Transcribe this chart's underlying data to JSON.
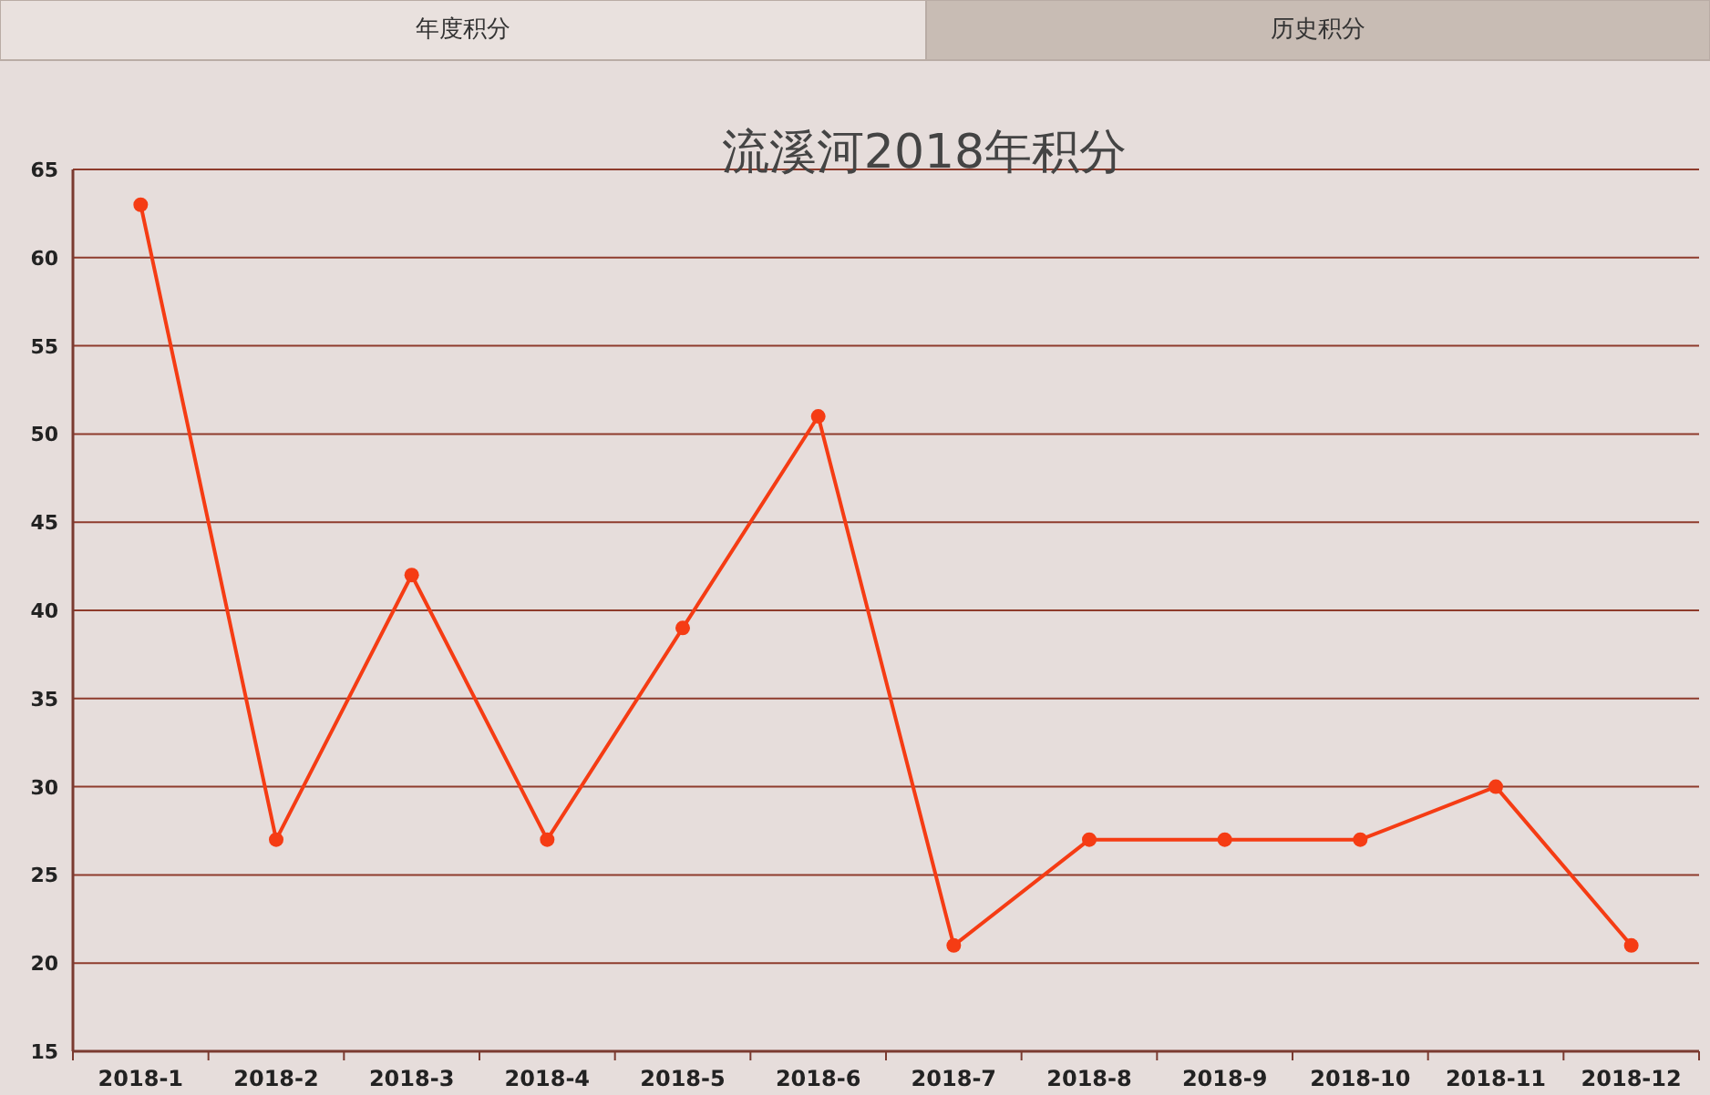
{
  "chart_data": {
    "type": "line",
    "title": "流溪河2018年积分",
    "categories": [
      "2018-1",
      "2018-2",
      "2018-3",
      "2018-4",
      "2018-5",
      "2018-6",
      "2018-7",
      "2018-8",
      "2018-9",
      "2018-10",
      "2018-11",
      "2018-12"
    ],
    "series": [
      {
        "color": "#f53c14",
        "values": [
          63,
          27,
          42,
          27,
          39,
          51,
          21,
          27,
          27,
          27,
          30,
          21
        ]
      }
    ],
    "ylim": [
      15,
      65
    ],
    "yticks": [
      15,
      20,
      25,
      30,
      35,
      40,
      45,
      50,
      55,
      60,
      65
    ],
    "grid": "y",
    "marker": "circle",
    "line_style": "solid",
    "annotations": [
      "年度积分",
      "历史积分"
    ]
  }
}
